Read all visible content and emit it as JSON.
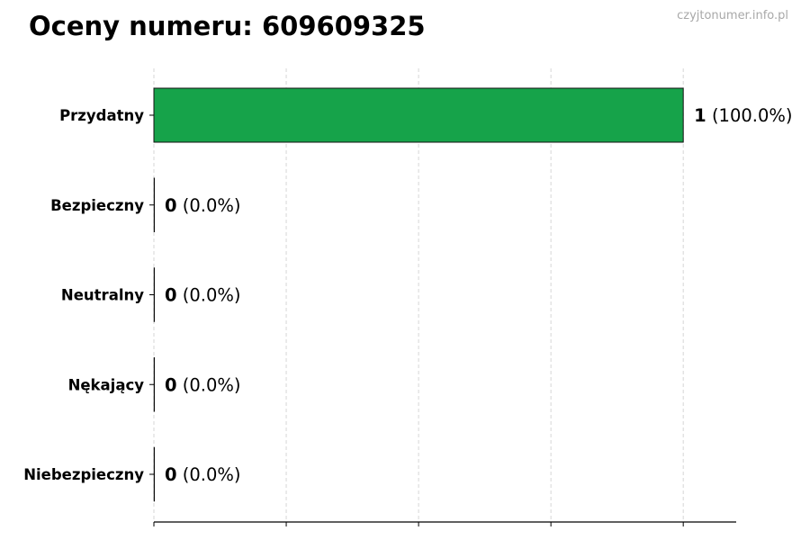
{
  "title": "Oceny numeru: 609609325",
  "watermark": "czyjtonumer.info.pl",
  "chart_data": {
    "type": "bar",
    "orientation": "horizontal",
    "title": "Oceny numeru: 609609325",
    "categories": [
      "Przydatny",
      "Bezpieczny",
      "Neutralny",
      "Nękający",
      "Niebezpieczny"
    ],
    "values": [
      1,
      0,
      0,
      0,
      0
    ],
    "labels": [
      {
        "count": "1",
        "pct": "(100.0%)"
      },
      {
        "count": "0",
        "pct": "(0.0%)"
      },
      {
        "count": "0",
        "pct": "(0.0%)"
      },
      {
        "count": "0",
        "pct": "(0.0%)"
      },
      {
        "count": "0",
        "pct": "(0.0%)"
      }
    ],
    "xlim": [
      0,
      1.1
    ],
    "xticks": [
      0,
      0.25,
      0.5,
      0.75,
      1
    ],
    "xtick_labels_shown": false,
    "grid": "x dashed",
    "bar_color": "#16a34a",
    "xlabel": "",
    "ylabel": ""
  }
}
